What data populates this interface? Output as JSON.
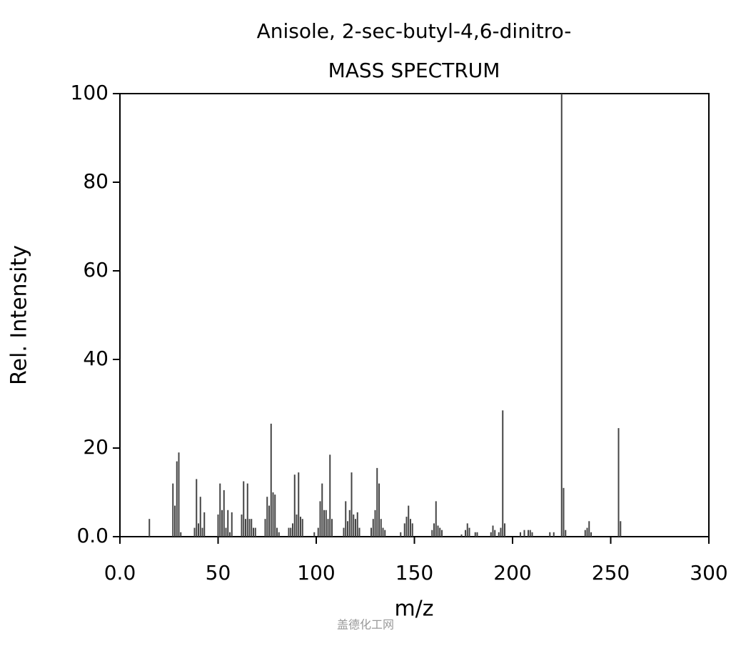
{
  "chart_data": {
    "type": "bar",
    "title": "Anisole, 2-sec-butyl-4,6-dinitro-",
    "subtitle": "MASS SPECTRUM",
    "x_label": "m/z",
    "y_label": "Rel. Intensity",
    "watermark": "盖德化工网",
    "color": "#444444",
    "xlim": [
      0,
      300
    ],
    "xticks": [
      {
        "value": 0,
        "label": "0.0"
      },
      50,
      100,
      150,
      200,
      250,
      300
    ],
    "ylim": [
      0,
      100
    ],
    "yticks": [
      {
        "value": 0,
        "label": "0.0"
      },
      20,
      40,
      60,
      80,
      100
    ],
    "x": [
      15,
      27,
      28,
      29,
      30,
      31,
      38,
      39,
      40,
      41,
      42,
      43,
      50,
      51,
      52,
      53,
      54,
      55,
      56,
      57,
      62,
      63,
      64,
      65,
      66,
      67,
      68,
      69,
      74,
      75,
      76,
      77,
      78,
      79,
      80,
      81,
      86,
      87,
      88,
      89,
      90,
      91,
      92,
      93,
      99,
      101,
      102,
      103,
      104,
      105,
      106,
      107,
      108,
      114,
      115,
      116,
      117,
      118,
      119,
      120,
      121,
      122,
      128,
      129,
      130,
      131,
      132,
      133,
      134,
      135,
      143,
      145,
      146,
      147,
      148,
      149,
      159,
      160,
      161,
      162,
      163,
      164,
      174,
      176,
      177,
      178,
      181,
      182,
      189,
      190,
      191,
      193,
      194,
      195,
      196,
      204,
      206,
      208,
      209,
      210,
      219,
      221,
      225,
      226,
      227,
      237,
      238,
      239,
      240,
      254,
      255
    ],
    "values": [
      4,
      12,
      7,
      17,
      19,
      1,
      2,
      13,
      3,
      9,
      2,
      5.5,
      5,
      12,
      6,
      10.5,
      2,
      6,
      1,
      5.5,
      5,
      12.5,
      4,
      12,
      4,
      4,
      2,
      2,
      4,
      9,
      7,
      25.5,
      10,
      9.5,
      2,
      1,
      2,
      2,
      3,
      14,
      5,
      14.5,
      4.5,
      4,
      1,
      2,
      8,
      12,
      6,
      6,
      4,
      18.5,
      4,
      2,
      8,
      3.5,
      6,
      14.5,
      5,
      4,
      5.5,
      2,
      2,
      4,
      6,
      15.5,
      12,
      4,
      2,
      1.5,
      1,
      3,
      4.5,
      7,
      4,
      3,
      1.5,
      3,
      8,
      2.5,
      2,
      1.5,
      0.5,
      1.5,
      3,
      2,
      1,
      1,
      1,
      2.5,
      1.5,
      1,
      2,
      28.5,
      3,
      1,
      1.5,
      1.5,
      1.5,
      1,
      1,
      1,
      100,
      11,
      1.5,
      1.5,
      2,
      3.5,
      1,
      24.5,
      3.5
    ]
  }
}
